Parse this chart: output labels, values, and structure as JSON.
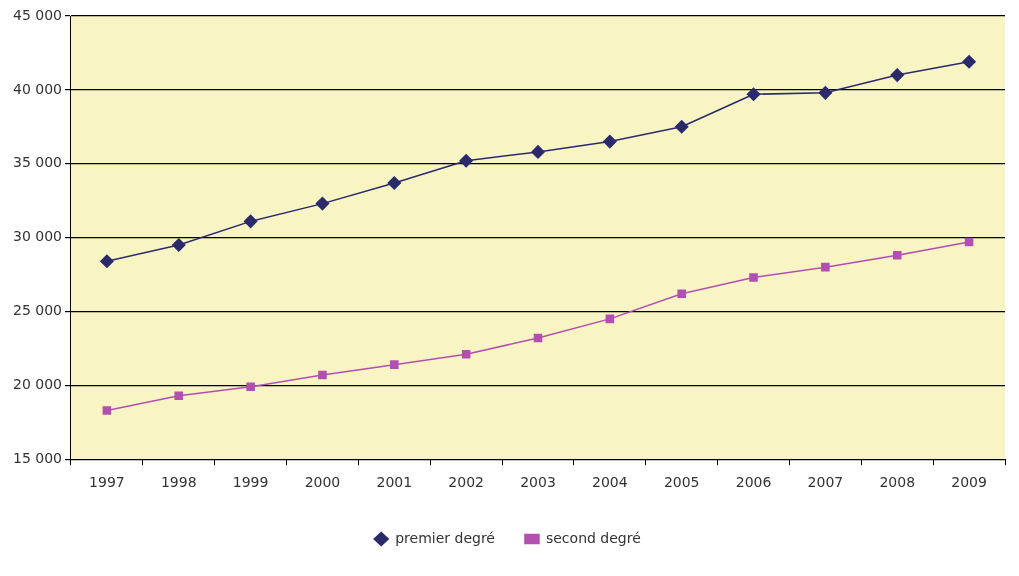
{
  "chart_data": {
    "type": "line",
    "categories": [
      "1997",
      "1998",
      "1999",
      "2000",
      "2001",
      "2002",
      "2003",
      "2004",
      "2005",
      "2006",
      "2007",
      "2008",
      "2009"
    ],
    "series": [
      {
        "name": "premier degré",
        "color": "#2b2a6b",
        "marker": "diamond",
        "values": [
          28400,
          29500,
          31100,
          32300,
          33700,
          35200,
          35800,
          36500,
          37500,
          39700,
          39800,
          41000,
          41900
        ]
      },
      {
        "name": "second degré",
        "color": "#b24fb0",
        "marker": "square",
        "values": [
          18300,
          19300,
          19900,
          20700,
          21400,
          22100,
          23200,
          24500,
          26200,
          27300,
          28000,
          28800,
          29700
        ]
      }
    ],
    "ylim": [
      15000,
      45000
    ],
    "yticks": [
      {
        "value": 15000,
        "label": "15 000"
      },
      {
        "value": 20000,
        "label": "20 000"
      },
      {
        "value": 25000,
        "label": "25 000"
      },
      {
        "value": 30000,
        "label": "30 000"
      },
      {
        "value": 35000,
        "label": "35 000"
      },
      {
        "value": 40000,
        "label": "40 000"
      },
      {
        "value": 45000,
        "label": "45 000"
      }
    ],
    "grid": "y",
    "legend": "bottom"
  }
}
